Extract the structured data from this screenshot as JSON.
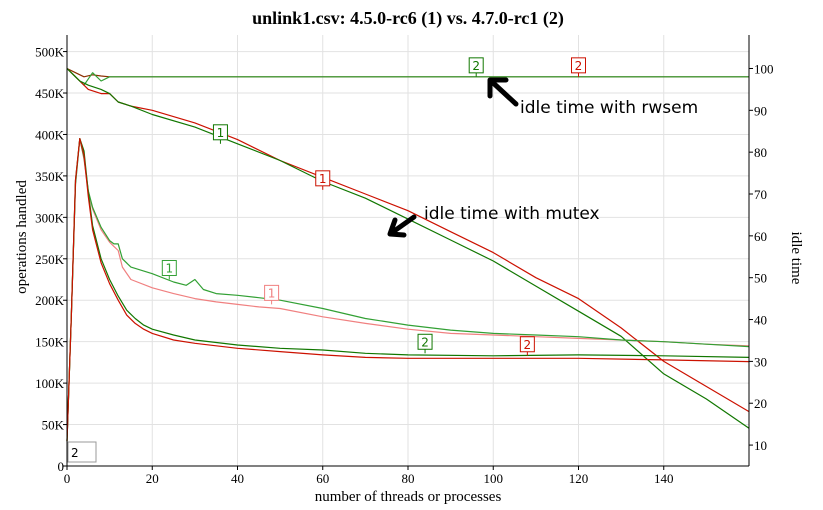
{
  "chart_data": {
    "type": "line",
    "title": "unlink1.csv: 4.5.0-rc6 (1) vs. 4.7.0-rc1 (2)",
    "xlabel": "number of threads or processes",
    "ylabel": "operations handled",
    "y2label": "idle time",
    "xlim": [
      0,
      160
    ],
    "ylim": [
      0,
      520000
    ],
    "y2lim": [
      5,
      108
    ],
    "x_ticks": [
      "0",
      "20",
      "40",
      "60",
      "80",
      "100",
      "120",
      "140"
    ],
    "y_ticks": [
      "0",
      "50K",
      "100K",
      "150K",
      "200K",
      "250K",
      "300K",
      "350K",
      "400K",
      "450K",
      "500K"
    ],
    "y2_ticks": [
      "10",
      "20",
      "30",
      "40",
      "50",
      "60",
      "70",
      "80",
      "90",
      "100"
    ],
    "grid": true,
    "legend_box": "2",
    "annotations": [
      "idle time with rwsem",
      "idle time with mutex"
    ],
    "series": [
      {
        "axis": "right",
        "label": "2",
        "color": "#8b2e00",
        "x": [
          0,
          2,
          4,
          6,
          8,
          10,
          15,
          20,
          40,
          80,
          120,
          160
        ],
        "y": [
          100,
          99,
          98,
          98.5,
          98.2,
          98,
          98,
          98,
          98,
          98,
          98,
          98
        ]
      },
      {
        "axis": "right",
        "label": "2",
        "color": "#32a034",
        "x": [
          0,
          2,
          4,
          6,
          8,
          10,
          12,
          20,
          40,
          80,
          120,
          160
        ],
        "y": [
          100,
          98,
          96,
          99,
          97,
          98,
          98,
          98,
          98,
          98,
          98,
          98
        ]
      },
      {
        "axis": "right",
        "label": "1",
        "color": "#cc1100",
        "x": [
          0,
          2,
          3,
          5,
          8,
          10,
          12,
          15,
          20,
          30,
          40,
          50,
          60,
          70,
          80,
          90,
          100,
          110,
          120,
          130,
          140,
          150,
          160
        ],
        "y": [
          100,
          98,
          97,
          95,
          94,
          94,
          92,
          91,
          90,
          87,
          83,
          78,
          74,
          70,
          66,
          61,
          56,
          50,
          45,
          38,
          30,
          24,
          18
        ]
      },
      {
        "axis": "right",
        "label": "1",
        "color": "#117700",
        "x": [
          0,
          2,
          3,
          5,
          8,
          10,
          12,
          15,
          20,
          30,
          40,
          50,
          60,
          70,
          80,
          90,
          100,
          110,
          120,
          130,
          140,
          150,
          160
        ],
        "y": [
          100,
          98,
          97,
          96,
          95,
          94,
          92,
          91,
          89,
          86,
          82,
          78,
          73,
          69,
          64,
          59,
          54,
          48,
          42,
          36,
          27,
          21,
          14
        ]
      },
      {
        "axis": "left",
        "label": "1",
        "color": "#f08080",
        "x": [
          0,
          1,
          2,
          3,
          4,
          5,
          6,
          8,
          10,
          11,
          12,
          13,
          15,
          20,
          25,
          30,
          35,
          40,
          45,
          50,
          60,
          70,
          80,
          90,
          100,
          110,
          120,
          130,
          140,
          150,
          160
        ],
        "y": [
          30000,
          180000,
          340000,
          395000,
          370000,
          330000,
          310000,
          285000,
          270000,
          265000,
          260000,
          240000,
          225000,
          215000,
          208000,
          202000,
          198000,
          195000,
          192000,
          190000,
          180000,
          172000,
          165000,
          160000,
          158000,
          156000,
          154000,
          152000,
          150000,
          147000,
          145000
        ]
      },
      {
        "axis": "left",
        "label": "1",
        "color": "#32a034",
        "x": [
          0,
          1,
          2,
          3,
          4,
          5,
          6,
          8,
          10,
          11,
          12,
          13,
          15,
          20,
          25,
          28,
          30,
          32,
          35,
          40,
          45,
          50,
          60,
          70,
          80,
          90,
          100,
          110,
          120,
          130,
          140,
          150,
          160
        ],
        "y": [
          30000,
          180000,
          340000,
          395000,
          372000,
          332000,
          312000,
          288000,
          272000,
          268000,
          268000,
          250000,
          240000,
          232000,
          222000,
          218000,
          225000,
          213000,
          208000,
          206000,
          203000,
          200000,
          190000,
          178000,
          170000,
          164000,
          160000,
          158000,
          156000,
          152000,
          150000,
          147000,
          144000
        ]
      },
      {
        "axis": "left",
        "label": "2",
        "color": "#117700",
        "x": [
          0,
          1,
          2,
          3,
          4,
          5,
          6,
          8,
          10,
          12,
          14,
          16,
          18,
          20,
          25,
          30,
          40,
          50,
          60,
          70,
          80,
          100,
          120,
          140,
          160
        ],
        "y": [
          30000,
          180000,
          345000,
          395000,
          380000,
          330000,
          290000,
          250000,
          225000,
          205000,
          188000,
          178000,
          170000,
          165000,
          158000,
          152000,
          146000,
          142000,
          140000,
          136000,
          134000,
          133000,
          134000,
          133000,
          131000
        ]
      },
      {
        "axis": "left",
        "label": "2",
        "color": "#cc1100",
        "x": [
          0,
          1,
          2,
          3,
          4,
          5,
          6,
          8,
          10,
          12,
          14,
          16,
          18,
          20,
          25,
          30,
          40,
          50,
          60,
          70,
          80,
          100,
          120,
          140,
          160
        ],
        "y": [
          30000,
          180000,
          345000,
          395000,
          375000,
          325000,
          285000,
          245000,
          220000,
          200000,
          182000,
          172000,
          165000,
          160000,
          152000,
          148000,
          142000,
          138000,
          134000,
          131000,
          130000,
          130000,
          130000,
          128000,
          126000
        ]
      }
    ],
    "series_labels": [
      {
        "text": "2",
        "x": 96,
        "axis": "right",
        "y": 98,
        "color": "#117700"
      },
      {
        "text": "2",
        "x": 120,
        "axis": "right",
        "y": 98,
        "color": "#cc1100"
      },
      {
        "text": "1",
        "x": 36,
        "axis": "right",
        "y": 82,
        "color": "#117700"
      },
      {
        "text": "1",
        "x": 60,
        "axis": "right",
        "y": 71,
        "color": "#cc1100"
      },
      {
        "text": "1",
        "x": 24,
        "axis": "left",
        "y": 225000,
        "color": "#32a034"
      },
      {
        "text": "1",
        "x": 48,
        "axis": "left",
        "y": 195000,
        "color": "#f08080"
      },
      {
        "text": "2",
        "x": 84,
        "axis": "left",
        "y": 136000,
        "color": "#117700"
      },
      {
        "text": "2",
        "x": 108,
        "axis": "left",
        "y": 133000,
        "color": "#cc1100"
      }
    ]
  }
}
